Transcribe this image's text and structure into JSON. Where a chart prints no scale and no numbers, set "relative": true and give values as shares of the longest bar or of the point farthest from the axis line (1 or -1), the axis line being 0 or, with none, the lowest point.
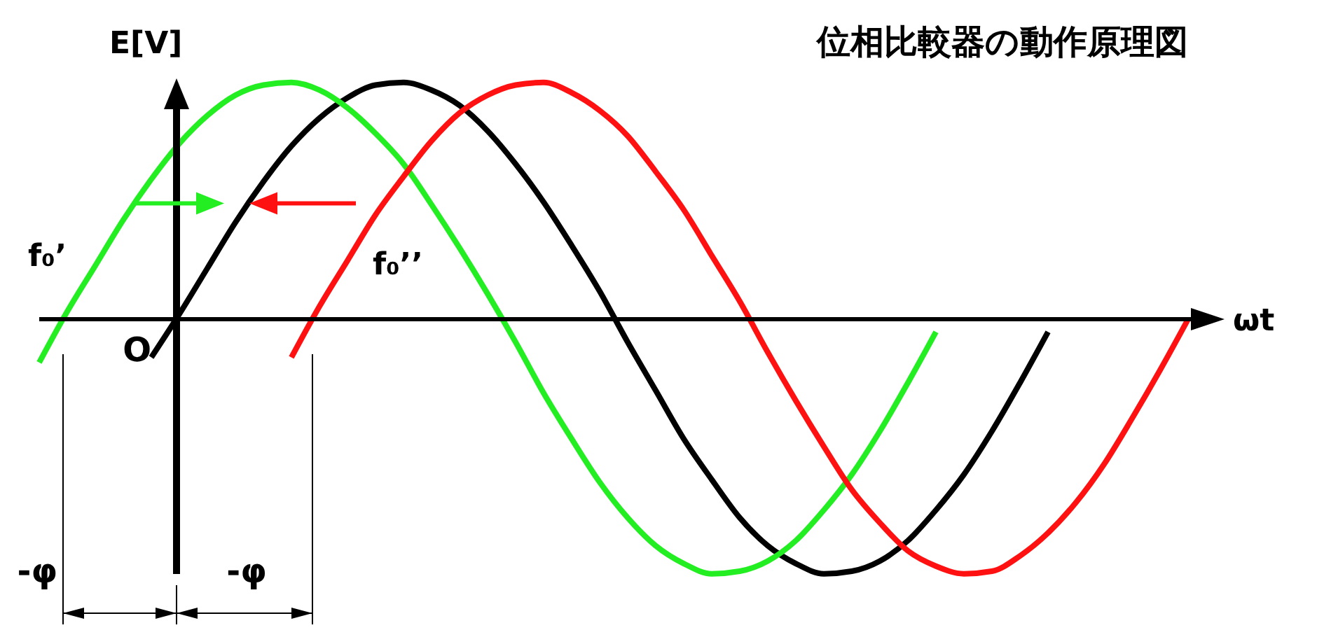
{
  "chart_data": {
    "type": "line",
    "title": "位相比較器の動作原理図",
    "xlabel": "ωt",
    "ylabel": "E[V]",
    "relative": true,
    "line_style": "solid",
    "categories": [
      null,
      null,
      null,
      null,
      null,
      null,
      null,
      null,
      null,
      null,
      null,
      null,
      null,
      null,
      null,
      null,
      null,
      null,
      null,
      null,
      null,
      null,
      null,
      null,
      null,
      null,
      null,
      null,
      null,
      null,
      null,
      null,
      null,
      null,
      null,
      null,
      null,
      null,
      null,
      null,
      null,
      null
    ],
    "series": [
      {
        "color": "#000000",
        "values": [
          null,
          null,
          null,
          null,
          -0.15,
          0.02,
          0.2,
          0.38,
          0.54,
          0.68,
          0.79,
          0.87,
          0.92,
          0.93,
          0.9,
          0.84,
          0.74,
          0.61,
          0.46,
          0.29,
          0.11,
          -0.09,
          -0.28,
          -0.47,
          -0.63,
          -0.78,
          -0.89,
          -0.96,
          -1,
          -0.99,
          -0.95,
          -0.87,
          -0.75,
          -0.61,
          -0.44,
          -0.25,
          -0.05,
          null,
          null,
          null,
          null,
          null
        ]
      },
      {
        "name": "f₀’",
        "color": "#22ee22",
        "values": [
          -0.17,
          0.03,
          0.21,
          0.39,
          0.55,
          0.69,
          0.8,
          0.88,
          0.92,
          0.93,
          0.9,
          0.83,
          0.73,
          0.61,
          0.45,
          0.28,
          0.1,
          -0.09,
          -0.29,
          -0.47,
          -0.64,
          -0.78,
          -0.89,
          -0.96,
          -1,
          -0.99,
          -0.95,
          -0.87,
          -0.75,
          -0.61,
          -0.44,
          -0.25,
          -0.05,
          null,
          null,
          null,
          null,
          null,
          null,
          null,
          null,
          null
        ]
      },
      {
        "name": "f₀’’",
        "color": "#ff1111",
        "values": [
          null,
          null,
          null,
          null,
          null,
          null,
          null,
          null,
          null,
          -0.15,
          0.05,
          0.23,
          0.41,
          0.56,
          0.7,
          0.81,
          0.88,
          0.92,
          0.93,
          0.89,
          0.82,
          0.72,
          0.58,
          0.43,
          0.25,
          0.07,
          -0.13,
          -0.32,
          -0.5,
          -0.67,
          -0.8,
          -0.91,
          -0.97,
          -1,
          -0.99,
          -0.93,
          -0.84,
          -0.72,
          -0.57,
          -0.39,
          -0.2,
          0
        ]
      }
    ],
    "annotations": [
      "O",
      "-φ",
      "-φ"
    ]
  }
}
